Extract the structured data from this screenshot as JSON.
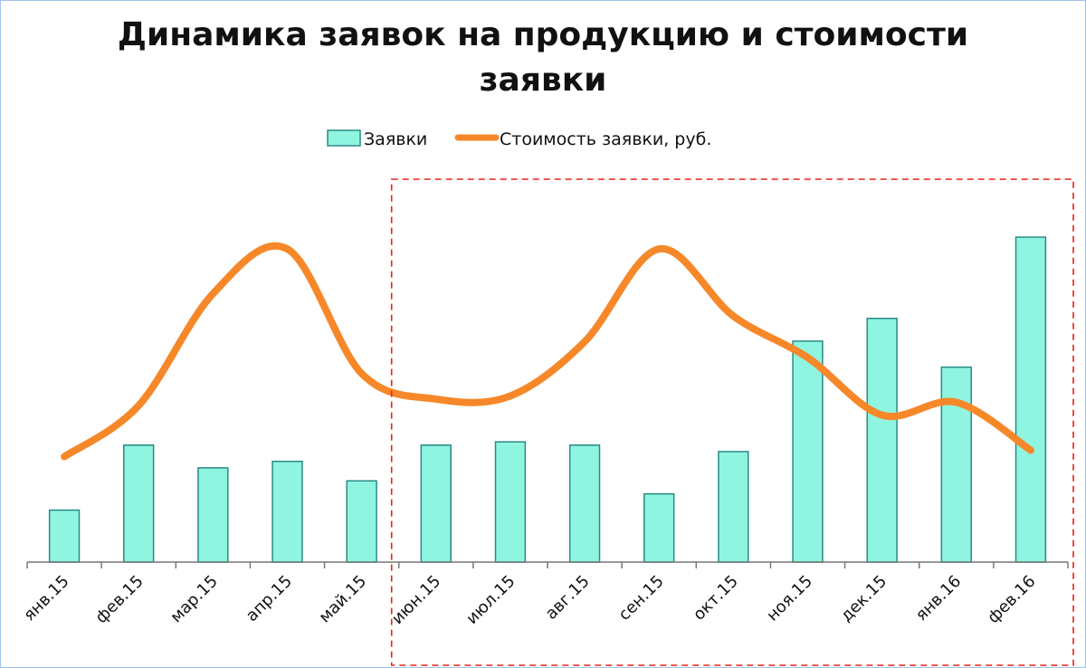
{
  "title_line1": "Динамика заявок на продукцию и стоимости",
  "title_line2": "заявки",
  "chart_data": {
    "type": "bar",
    "categories": [
      "янв.15",
      "фев.15",
      "мар.15",
      "апр.15",
      "май.15",
      "июн.15",
      "июл.15",
      "авг.15",
      "сен.15",
      "окт.15",
      "ноя.15",
      "дек.15",
      "янв.16",
      "фев.16"
    ],
    "series": [
      {
        "name": "Заявки",
        "kind": "bar",
        "color": "#8ff5e0",
        "stroke": "#2a8a86",
        "values": [
          16,
          36,
          29,
          31,
          25,
          36,
          37,
          36,
          21,
          34,
          68,
          75,
          60,
          100
        ]
      },
      {
        "name": "Стоимость заявки, руб.",
        "kind": "line",
        "color": "#f6882a",
        "values": [
          33,
          49,
          84,
          98,
          59,
          51,
          52,
          69,
          98,
          77,
          64,
          46,
          50,
          35
        ]
      }
    ],
    "legend_position": "top",
    "grid": false,
    "highlight": {
      "from": "июн.15",
      "to": "фев.16",
      "style": "dashed-red-box"
    }
  }
}
